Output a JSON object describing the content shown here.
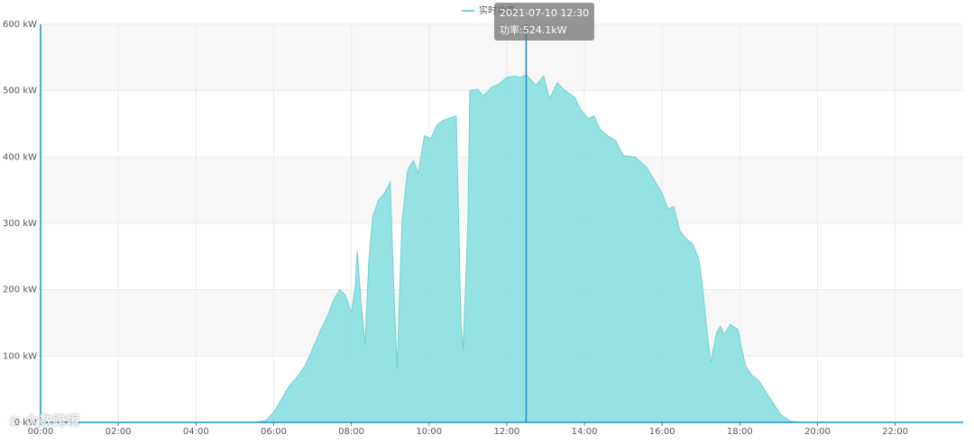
{
  "chart_data": {
    "type": "area",
    "legend": {
      "label": "实时功率",
      "placement": "top-center"
    },
    "colors": {
      "area": "#8fe0e0",
      "line": "#72d2d2",
      "axis": "#1e8fc6",
      "grid": "#ebebeb",
      "band": "#f7f7f7",
      "cursor": "#1e8fc6"
    },
    "yaxis": {
      "min": 0,
      "max": 600,
      "ticks": [
        {
          "value": 0,
          "label": "0 kW"
        },
        {
          "value": 100,
          "label": "100 kW"
        },
        {
          "value": 200,
          "label": "200 kW"
        },
        {
          "value": 300,
          "label": "300 kW"
        },
        {
          "value": 400,
          "label": "400 kW"
        },
        {
          "value": 500,
          "label": "500 kW"
        },
        {
          "value": 600,
          "label": "600 kW"
        }
      ]
    },
    "xaxis": {
      "min": 0,
      "max": 23.75,
      "unit": "hour",
      "ticks": [
        {
          "value": 0,
          "label": "00:00"
        },
        {
          "value": 2,
          "label": "02:00"
        },
        {
          "value": 4,
          "label": "04:00"
        },
        {
          "value": 6,
          "label": "06:00"
        },
        {
          "value": 8,
          "label": "08:00"
        },
        {
          "value": 10,
          "label": "10:00"
        },
        {
          "value": 12,
          "label": "12:00"
        },
        {
          "value": 14,
          "label": "14:00"
        },
        {
          "value": 16,
          "label": "16:00"
        },
        {
          "value": 18,
          "label": "18:00"
        },
        {
          "value": 20,
          "label": "20:00"
        },
        {
          "value": 22,
          "label": "22:00"
        }
      ]
    },
    "series": [
      {
        "points": [
          [
            0,
            0
          ],
          [
            5.5,
            0
          ],
          [
            5.8,
            3
          ],
          [
            6.0,
            15
          ],
          [
            6.2,
            35
          ],
          [
            6.4,
            55
          ],
          [
            6.6,
            68
          ],
          [
            6.8,
            85
          ],
          [
            7.0,
            110
          ],
          [
            7.2,
            138
          ],
          [
            7.4,
            162
          ],
          [
            7.55,
            185
          ],
          [
            7.7,
            200
          ],
          [
            7.85,
            192
          ],
          [
            8.0,
            165
          ],
          [
            8.1,
            205
          ],
          [
            8.15,
            258
          ],
          [
            8.25,
            180
          ],
          [
            8.35,
            118
          ],
          [
            8.45,
            245
          ],
          [
            8.55,
            310
          ],
          [
            8.7,
            335
          ],
          [
            8.85,
            345
          ],
          [
            9.0,
            362
          ],
          [
            9.1,
            190
          ],
          [
            9.18,
            80
          ],
          [
            9.3,
            300
          ],
          [
            9.45,
            380
          ],
          [
            9.6,
            395
          ],
          [
            9.72,
            375
          ],
          [
            9.88,
            432
          ],
          [
            10.05,
            428
          ],
          [
            10.2,
            448
          ],
          [
            10.35,
            455
          ],
          [
            10.6,
            460
          ],
          [
            10.7,
            462
          ],
          [
            10.82,
            150
          ],
          [
            10.88,
            110
          ],
          [
            11.0,
            300
          ],
          [
            11.05,
            500
          ],
          [
            11.25,
            502
          ],
          [
            11.4,
            492
          ],
          [
            11.6,
            505
          ],
          [
            11.8,
            510
          ],
          [
            12.0,
            520
          ],
          [
            12.2,
            522
          ],
          [
            12.35,
            520
          ],
          [
            12.5,
            524.1
          ],
          [
            12.75,
            508
          ],
          [
            12.95,
            522
          ],
          [
            13.1,
            488
          ],
          [
            13.3,
            512
          ],
          [
            13.5,
            500
          ],
          [
            13.75,
            490
          ],
          [
            13.9,
            472
          ],
          [
            14.1,
            458
          ],
          [
            14.25,
            462
          ],
          [
            14.4,
            442
          ],
          [
            14.6,
            432
          ],
          [
            14.8,
            425
          ],
          [
            15.0,
            402
          ],
          [
            15.3,
            400
          ],
          [
            15.6,
            385
          ],
          [
            15.8,
            365
          ],
          [
            16.0,
            345
          ],
          [
            16.15,
            322
          ],
          [
            16.3,
            325
          ],
          [
            16.45,
            290
          ],
          [
            16.6,
            278
          ],
          [
            16.8,
            268
          ],
          [
            16.95,
            245
          ],
          [
            17.05,
            200
          ],
          [
            17.15,
            140
          ],
          [
            17.25,
            90
          ],
          [
            17.4,
            135
          ],
          [
            17.5,
            145
          ],
          [
            17.6,
            132
          ],
          [
            17.75,
            148
          ],
          [
            17.95,
            140
          ],
          [
            18.05,
            110
          ],
          [
            18.15,
            85
          ],
          [
            18.3,
            72
          ],
          [
            18.5,
            62
          ],
          [
            18.65,
            48
          ],
          [
            18.85,
            30
          ],
          [
            19.05,
            12
          ],
          [
            19.3,
            2
          ],
          [
            19.5,
            0
          ],
          [
            23.75,
            0
          ]
        ]
      }
    ],
    "cursor": {
      "x": 12.5
    },
    "tooltip": {
      "line1": "2021-07-10 12:30",
      "line2": "功率:524.1kW"
    },
    "watermark": "大数跨境"
  }
}
